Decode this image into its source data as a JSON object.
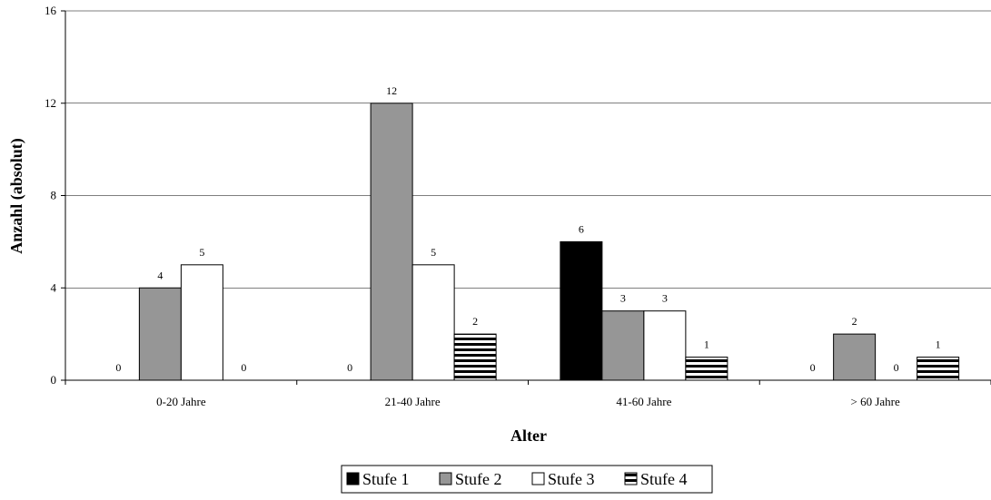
{
  "chart_data": {
    "type": "bar",
    "title": "",
    "xlabel": "Alter",
    "ylabel": "Anzahl (absolut)",
    "ylim": [
      0,
      16
    ],
    "yticks": [
      0,
      4,
      8,
      12,
      16
    ],
    "grid": true,
    "legend_position": "bottom-center",
    "categories": [
      "0-20 Jahre",
      "21-40 Jahre",
      "41-60 Jahre",
      "> 60 Jahre"
    ],
    "series": [
      {
        "name": "Stufe 1",
        "values": [
          0,
          0,
          6,
          0
        ],
        "fill": "#000000",
        "pattern": "solid"
      },
      {
        "name": "Stufe 2",
        "values": [
          4,
          12,
          3,
          2
        ],
        "fill": "#969696",
        "pattern": "solid"
      },
      {
        "name": "Stufe 3",
        "values": [
          5,
          5,
          3,
          0
        ],
        "fill": "#ffffff",
        "pattern": "solid"
      },
      {
        "name": "Stufe 4",
        "values": [
          0,
          2,
          1,
          1
        ],
        "fill": "#000000",
        "pattern": "horizontal-stripes"
      }
    ]
  }
}
